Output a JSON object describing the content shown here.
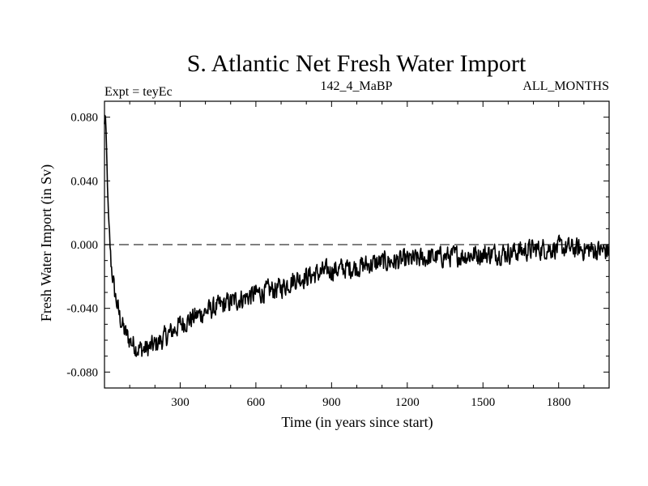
{
  "chart_data": {
    "type": "line",
    "title": "S. Atlantic Net Fresh Water Import",
    "subtitle_left": "Expt = teyEc",
    "subtitle_center": "142_4_MaBP",
    "subtitle_right": "ALL_MONTHS",
    "xlabel": "Time (in years since start)",
    "ylabel": "Fresh Water Import (in Sv)",
    "xlim": [
      0,
      2000
    ],
    "ylim": [
      -0.09,
      0.09
    ],
    "x_ticks": [
      300,
      600,
      900,
      1200,
      1500,
      1800
    ],
    "x_tick_labels": [
      "300",
      "600",
      "900",
      "1200",
      "1500",
      "1800"
    ],
    "y_ticks": [
      0.08,
      0.04,
      0.0,
      -0.04,
      -0.08
    ],
    "y_tick_labels": [
      "0.080",
      "0.040",
      "0.000",
      "-0.040",
      "-0.080"
    ],
    "reference_line": {
      "y": 0.0,
      "style": "dashed"
    },
    "series": [
      {
        "name": "Net Fresh Water Import",
        "color": "#000000",
        "noise_amplitude": 0.009,
        "anchor_x": [
          0,
          3,
          8,
          15,
          25,
          40,
          60,
          80,
          100,
          130,
          160,
          200,
          250,
          300,
          400,
          500,
          600,
          700,
          750,
          800,
          900,
          1000,
          1100,
          1200,
          1300,
          1400,
          1500,
          1600,
          1700,
          1800,
          1900,
          2000
        ],
        "anchor_y": [
          0.075,
          0.085,
          0.06,
          0.02,
          -0.01,
          -0.03,
          -0.045,
          -0.055,
          -0.06,
          -0.065,
          -0.066,
          -0.063,
          -0.057,
          -0.05,
          -0.042,
          -0.036,
          -0.031,
          -0.027,
          -0.022,
          -0.02,
          -0.016,
          -0.014,
          -0.011,
          -0.01,
          -0.008,
          -0.007,
          -0.006,
          -0.005,
          -0.003,
          -0.002,
          -0.003,
          -0.004
        ]
      }
    ]
  }
}
